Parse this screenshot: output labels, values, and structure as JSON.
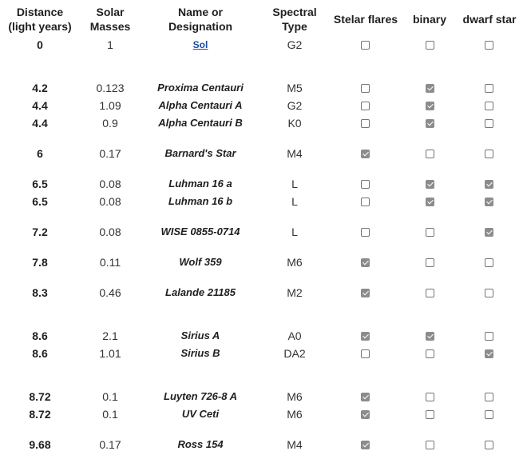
{
  "headers": {
    "distance": [
      "Distance",
      "(light years)"
    ],
    "mass": [
      "Solar",
      "Masses"
    ],
    "name": [
      "Name or",
      "Designation"
    ],
    "spectral": [
      "Spectral",
      "Type"
    ],
    "flares": "Stelar flares",
    "binary": "binary",
    "dwarf": "dwarf star"
  },
  "rows": [
    {
      "distance": "0",
      "mass": "1",
      "name": "Sol",
      "spectral": "G2",
      "flares": false,
      "binary": false,
      "dwarf": false
    },
    {
      "distance": "4.2",
      "mass": "0.123",
      "name": "Proxima Centauri",
      "spectral": "M5",
      "flares": false,
      "binary": true,
      "dwarf": false
    },
    {
      "distance": "4.4",
      "mass": "1.09",
      "name": "Alpha Centauri A",
      "spectral": "G2",
      "flares": false,
      "binary": true,
      "dwarf": false
    },
    {
      "distance": "4.4",
      "mass": "0.9",
      "name": "Alpha Centauri B",
      "spectral": "K0",
      "flares": false,
      "binary": true,
      "dwarf": false
    },
    {
      "distance": "6",
      "mass": "0.17",
      "name": "Barnard's Star",
      "spectral": "M4",
      "flares": true,
      "binary": false,
      "dwarf": false
    },
    {
      "distance": "6.5",
      "mass": "0.08",
      "name": "Luhman 16 a",
      "spectral": "L",
      "flares": false,
      "binary": true,
      "dwarf": true
    },
    {
      "distance": "6.5",
      "mass": "0.08",
      "name": "Luhman 16 b",
      "spectral": "L",
      "flares": false,
      "binary": true,
      "dwarf": true
    },
    {
      "distance": "7.2",
      "mass": "0.08",
      "name": "WISE 0855-0714",
      "spectral": "L",
      "flares": false,
      "binary": false,
      "dwarf": true
    },
    {
      "distance": "7.8",
      "mass": "0.11",
      "name": "Wolf 359",
      "spectral": "M6",
      "flares": true,
      "binary": false,
      "dwarf": false
    },
    {
      "distance": "8.3",
      "mass": "0.46",
      "name": "Lalande 21185",
      "spectral": "M2",
      "flares": true,
      "binary": false,
      "dwarf": false
    },
    {
      "distance": "8.6",
      "mass": "2.1",
      "name": "Sirius A",
      "spectral": "A0",
      "flares": true,
      "binary": true,
      "dwarf": false
    },
    {
      "distance": "8.6",
      "mass": "1.01",
      "name": "Sirius B",
      "spectral": "DA2",
      "flares": false,
      "binary": false,
      "dwarf": true
    },
    {
      "distance": "8.72",
      "mass": "0.1",
      "name": "Luyten 726-8 A",
      "spectral": "M6",
      "flares": true,
      "binary": false,
      "dwarf": false
    },
    {
      "distance": "8.72",
      "mass": "0.1",
      "name": "UV Ceti",
      "spectral": "M6",
      "flares": true,
      "binary": false,
      "dwarf": false
    },
    {
      "distance": "9.68",
      "mass": "0.17",
      "name": "Ross 154",
      "spectral": "M4",
      "flares": true,
      "binary": false,
      "dwarf": false
    }
  ]
}
